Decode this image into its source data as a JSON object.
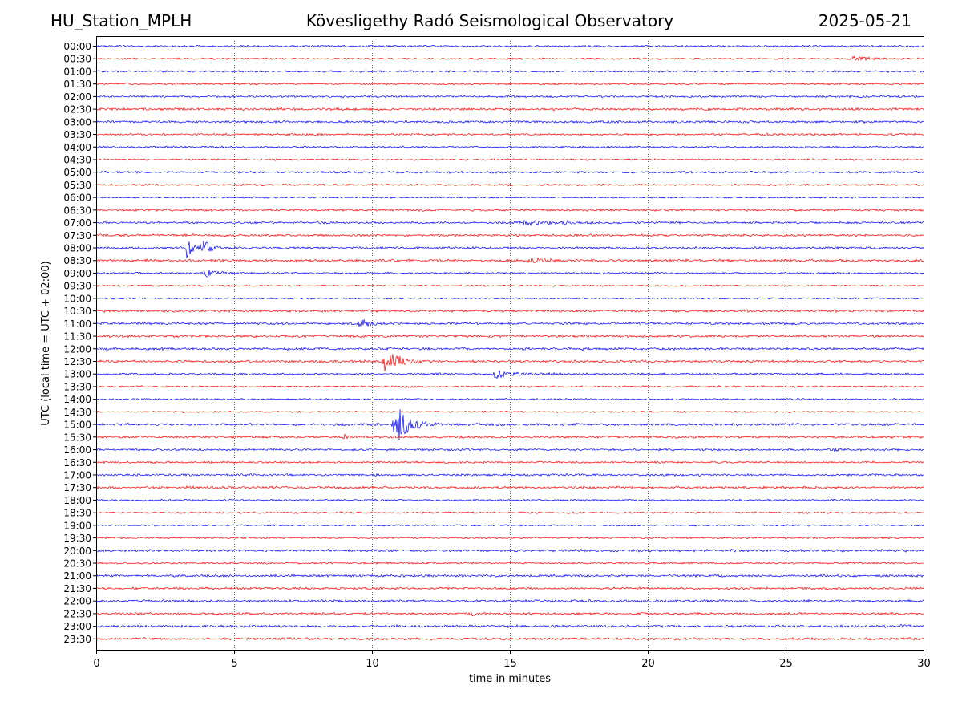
{
  "header": {
    "station": "HU_Station_MPLH",
    "observatory": "Kövesligethy Radó Seismological Observatory",
    "date": "2025-05-21"
  },
  "chart_data": {
    "type": "line",
    "subtype": "helicorder",
    "xlabel": "time in minutes",
    "ylabel": "UTC (local time = UTC + 02:00)",
    "xlim": [
      0,
      30
    ],
    "xticks": [
      0,
      5,
      10,
      15,
      20,
      25,
      30
    ],
    "grid": "vertical dotted at x ticks",
    "row_labels": [
      "00:00",
      "00:30",
      "01:00",
      "01:30",
      "02:00",
      "02:30",
      "03:00",
      "03:30",
      "04:00",
      "04:30",
      "05:00",
      "05:30",
      "06:00",
      "06:30",
      "07:00",
      "07:30",
      "08:00",
      "08:30",
      "09:00",
      "09:30",
      "10:00",
      "10:30",
      "11:00",
      "11:30",
      "12:00",
      "12:30",
      "13:00",
      "13:30",
      "14:00",
      "14:30",
      "15:00",
      "15:30",
      "16:00",
      "16:30",
      "17:00",
      "17:30",
      "18:00",
      "18:30",
      "19:00",
      "19:30",
      "20:00",
      "20:30",
      "21:00",
      "21:30",
      "22:00",
      "22:30",
      "23:00",
      "23:30"
    ],
    "trace_colors": [
      "#0000ff",
      "#ff0000"
    ],
    "noise_amplitude": 1.0,
    "events": [
      {
        "row": "00:30",
        "minute": 27.5,
        "amplitude": 3,
        "duration": 0.8
      },
      {
        "row": "02:30",
        "minute": 6.6,
        "amplitude": 2,
        "duration": 0.3
      },
      {
        "row": "07:00",
        "minute": 15.5,
        "amplitude": 3,
        "duration": 1.5
      },
      {
        "row": "07:00",
        "minute": 17.0,
        "amplitude": 4,
        "duration": 0.2
      },
      {
        "row": "08:00",
        "minute": 3.3,
        "amplitude": 14,
        "duration": 0.3
      },
      {
        "row": "08:00",
        "minute": 3.85,
        "amplitude": 12,
        "duration": 0.4
      },
      {
        "row": "08:30",
        "minute": 15.8,
        "amplitude": 3,
        "duration": 0.6
      },
      {
        "row": "09:00",
        "minute": 4.0,
        "amplitude": 4,
        "duration": 0.5
      },
      {
        "row": "11:00",
        "minute": 9.6,
        "amplitude": 6,
        "duration": 0.5
      },
      {
        "row": "12:00",
        "minute": 17.6,
        "amplitude": 3,
        "duration": 0.2
      },
      {
        "row": "12:30",
        "minute": 10.5,
        "amplitude": 20,
        "duration": 0.6
      },
      {
        "row": "13:00",
        "minute": 14.5,
        "amplitude": 5,
        "duration": 0.9
      },
      {
        "row": "15:00",
        "minute": 10.9,
        "amplitude": 24,
        "duration": 0.7
      },
      {
        "row": "15:30",
        "minute": 9.0,
        "amplitude": 4,
        "duration": 0.2
      },
      {
        "row": "16:00",
        "minute": 26.8,
        "amplitude": 2,
        "duration": 0.3
      },
      {
        "row": "22:30",
        "minute": 13.6,
        "amplitude": 2,
        "duration": 0.3
      },
      {
        "row": "23:00",
        "minute": 29.2,
        "amplitude": 2,
        "duration": 0.3
      }
    ]
  }
}
